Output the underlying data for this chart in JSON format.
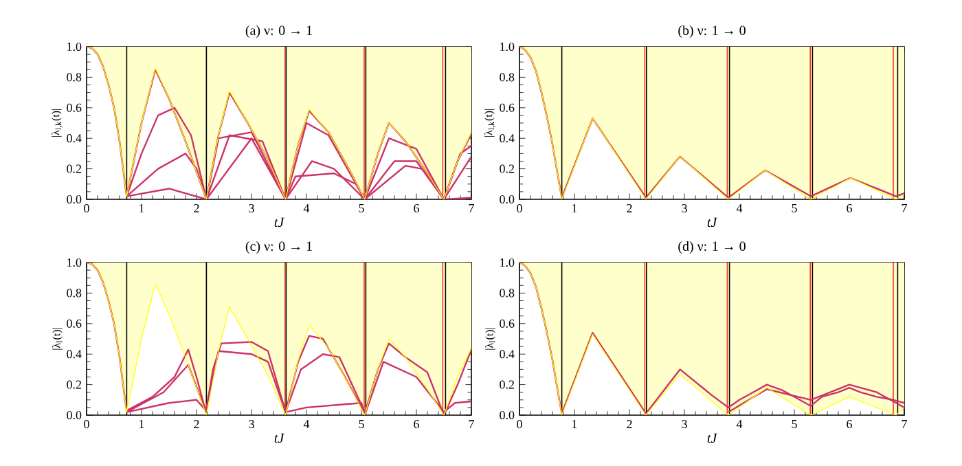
{
  "chart_data": [
    {
      "type": "line",
      "title": "(a) ν: 0 → 1",
      "xlabel": "tJ",
      "ylabel": "|λ$_{l,k}$(t)|",
      "xlim": [
        0,
        7
      ],
      "ylim": [
        0,
        1
      ],
      "xticks": [
        0,
        1,
        2,
        3,
        4,
        5,
        6,
        7
      ],
      "yticks": [
        {
          "value": 0,
          "label": "0.0"
        },
        {
          "value": 0.2,
          "label": "0.2"
        },
        {
          "value": 0.4,
          "label": "0.4"
        },
        {
          "value": 0.6,
          "label": "0.6"
        },
        {
          "value": 0.8,
          "label": "0.8"
        },
        {
          "value": 1,
          "label": "1.0"
        }
      ],
      "marker": "none",
      "line_style": "solid",
      "series": [
        {
          "color": "#ffff00",
          "x": [
            0,
            0.1,
            0.2,
            0.3,
            0.4,
            0.5,
            0.6,
            0.7,
            0.73,
            1.0,
            1.25,
            1.5,
            1.8,
            2.18,
            2.4,
            2.6,
            2.9,
            3.3,
            3.62,
            3.85,
            4.05,
            4.4,
            4.8,
            5.06,
            5.3,
            5.5,
            5.8,
            6.2,
            6.5,
            6.75,
            7.0
          ],
          "values": [
            1,
            0.99,
            0.95,
            0.87,
            0.75,
            0.6,
            0.38,
            0.1,
            0.02,
            0.5,
            0.86,
            0.66,
            0.38,
            0,
            0.42,
            0.71,
            0.52,
            0.26,
            0,
            0.36,
            0.59,
            0.44,
            0.18,
            0,
            0.3,
            0.5,
            0.38,
            0.17,
            0,
            0.25,
            0.44
          ],
          "lower": [
            1,
            0.99,
            0.95,
            0.87,
            0.75,
            0.6,
            0.38,
            0.1,
            0.02,
            0.5,
            0.86,
            0.66,
            0.38,
            0,
            0.42,
            0.71,
            0.52,
            0.26,
            0,
            0.36,
            0.59,
            0.44,
            0.18,
            0,
            0.3,
            0.5,
            0.38,
            0.17,
            0,
            0.25,
            0.44
          ],
          "upper": [
            1,
            1,
            1,
            1,
            1,
            1,
            1,
            1,
            1,
            1,
            1,
            1,
            1,
            1,
            1,
            1,
            1,
            1,
            1,
            1,
            1,
            1,
            1,
            1,
            1,
            1,
            1,
            1,
            1,
            1,
            1
          ]
        },
        {
          "color": "#cc3366",
          "x": [
            0,
            0.1,
            0.2,
            0.3,
            0.4,
            0.5,
            0.6,
            0.7,
            0.73,
            1.0,
            1.25,
            1.5,
            1.8,
            2.18,
            2.4,
            2.6,
            2.9,
            3.3,
            3.62,
            3.85,
            4.05,
            4.4,
            4.8,
            5.06,
            5.3,
            5.5,
            5.8,
            6.2,
            6.5,
            6.75,
            7.0
          ],
          "values": [
            1,
            0.99,
            0.95,
            0.87,
            0.75,
            0.6,
            0.38,
            0.1,
            0.02,
            0.5,
            0.85,
            0.66,
            0.38,
            0,
            0.42,
            0.7,
            0.52,
            0.26,
            0,
            0.36,
            0.58,
            0.44,
            0.18,
            0,
            0.3,
            0.5,
            0.38,
            0.17,
            0,
            0.25,
            0.43
          ]
        },
        {
          "color": "#cc3366",
          "x": [
            0.73,
            1.0,
            1.3,
            1.6,
            1.9,
            2.18,
            2.4,
            3.0,
            3.62,
            4.0,
            4.4,
            5.06,
            5.5,
            6.0,
            6.5,
            6.8,
            7.0
          ],
          "values": [
            0.02,
            0.3,
            0.55,
            0.6,
            0.42,
            0,
            0.4,
            0.44,
            0,
            0.5,
            0.42,
            0,
            0.4,
            0.33,
            0,
            0.3,
            0.35
          ]
        },
        {
          "color": "#cc3366",
          "x": [
            0.73,
            1.3,
            1.8,
            2.0,
            2.18,
            2.6,
            3.2,
            3.62,
            4.1,
            4.5,
            5.06,
            5.6,
            6.0,
            6.5,
            7.0
          ],
          "values": [
            0.02,
            0.2,
            0.3,
            0.2,
            0,
            0.42,
            0.38,
            0,
            0.25,
            0.2,
            0,
            0.25,
            0.25,
            0,
            0.28
          ]
        },
        {
          "color": "#cc3366",
          "x": [
            0.73,
            1.5,
            2.18,
            3.0,
            3.62,
            3.8,
            4.5,
            4.9,
            5.06,
            5.8,
            6.1,
            6.5,
            7.0
          ],
          "values": [
            0.02,
            0.07,
            0,
            0.4,
            0,
            0.15,
            0.17,
            0.1,
            0,
            0.22,
            0.2,
            0,
            0.01
          ]
        }
      ],
      "ref_lines": [
        {
          "axis": "x",
          "value": 0.73,
          "color": "#000000"
        },
        {
          "axis": "x",
          "value": 2.18,
          "color": "#000000"
        },
        {
          "axis": "x",
          "value": 3.61,
          "color": "#ff3020"
        },
        {
          "axis": "x",
          "value": 3.63,
          "color": "#000000"
        },
        {
          "axis": "x",
          "value": 5.05,
          "color": "#ff3020"
        },
        {
          "axis": "x",
          "value": 5.08,
          "color": "#000000"
        },
        {
          "axis": "x",
          "value": 6.48,
          "color": "#ff3020"
        },
        {
          "axis": "x",
          "value": 6.53,
          "color": "#000000"
        }
      ]
    },
    {
      "type": "line",
      "title": "(b) ν: 1 → 0",
      "xlabel": "tJ",
      "ylabel": "|λ$_{l,k}$(t)|",
      "xlim": [
        0,
        7
      ],
      "ylim": [
        0,
        1
      ],
      "xticks": [
        0,
        1,
        2,
        3,
        4,
        5,
        6,
        7
      ],
      "yticks": [
        {
          "value": 0,
          "label": "0.0"
        },
        {
          "value": 0.2,
          "label": "0.2"
        },
        {
          "value": 0.4,
          "label": "0.4"
        },
        {
          "value": 0.6,
          "label": "0.6"
        },
        {
          "value": 0.8,
          "label": "0.8"
        },
        {
          "value": 1,
          "label": "1.0"
        }
      ],
      "marker": "none",
      "line_style": "solid",
      "series": [
        {
          "color": "#ffff00",
          "x": [
            0,
            0.1,
            0.2,
            0.3,
            0.4,
            0.5,
            0.6,
            0.7,
            0.77,
            1.33,
            2.3,
            2.92,
            3.8,
            4.47,
            5.3,
            6.02,
            6.85,
            7.0
          ],
          "values": [
            1,
            0.98,
            0.93,
            0.84,
            0.7,
            0.54,
            0.36,
            0.15,
            0,
            0.53,
            0,
            0.28,
            0,
            0.19,
            0,
            0.14,
            0,
            0.03
          ],
          "lower": [
            1,
            0.98,
            0.93,
            0.84,
            0.7,
            0.54,
            0.36,
            0.15,
            0,
            0.53,
            0,
            0.28,
            0,
            0.19,
            0,
            0.14,
            0,
            0.03
          ],
          "upper": [
            1,
            1,
            1,
            1,
            1,
            1,
            1,
            1,
            1,
            1,
            1,
            1,
            1,
            1,
            1,
            1,
            1,
            1
          ]
        },
        {
          "color": "#cc3366",
          "x": [
            0,
            0.1,
            0.2,
            0.3,
            0.4,
            0.5,
            0.6,
            0.7,
            0.77,
            1.33,
            2.3,
            2.92,
            3.8,
            4.47,
            5.3,
            6.02,
            6.85,
            7.0
          ],
          "values": [
            1,
            0.98,
            0.93,
            0.84,
            0.7,
            0.54,
            0.36,
            0.15,
            0.01,
            0.53,
            0.01,
            0.28,
            0.01,
            0.19,
            0.02,
            0.14,
            0.02,
            0.04
          ]
        }
      ],
      "ref_lines": [
        {
          "axis": "x",
          "value": 0.77,
          "color": "#000000"
        },
        {
          "axis": "x",
          "value": 2.28,
          "color": "#ff3020"
        },
        {
          "axis": "x",
          "value": 2.31,
          "color": "#000000"
        },
        {
          "axis": "x",
          "value": 3.78,
          "color": "#ff3020"
        },
        {
          "axis": "x",
          "value": 3.82,
          "color": "#000000"
        },
        {
          "axis": "x",
          "value": 5.29,
          "color": "#ff3020"
        },
        {
          "axis": "x",
          "value": 5.33,
          "color": "#000000"
        },
        {
          "axis": "x",
          "value": 6.8,
          "color": "#ff3020"
        },
        {
          "axis": "x",
          "value": 6.88,
          "color": "#000000"
        }
      ]
    },
    {
      "type": "line",
      "title": "(c) ν: 0 → 1",
      "xlabel": "tJ",
      "ylabel": "|λ$_{l}$(t)|",
      "xlim": [
        0,
        7
      ],
      "ylim": [
        0,
        1
      ],
      "xticks": [
        0,
        1,
        2,
        3,
        4,
        5,
        6,
        7
      ],
      "yticks": [
        {
          "value": 0,
          "label": "0.0"
        },
        {
          "value": 0.2,
          "label": "0.2"
        },
        {
          "value": 0.4,
          "label": "0.4"
        },
        {
          "value": 0.6,
          "label": "0.6"
        },
        {
          "value": 0.8,
          "label": "0.8"
        },
        {
          "value": 1,
          "label": "1.0"
        }
      ],
      "marker": "none",
      "line_style": "solid",
      "series": [
        {
          "color": "#ffff00",
          "x": [
            0,
            0.1,
            0.2,
            0.3,
            0.4,
            0.5,
            0.6,
            0.7,
            0.73,
            1.0,
            1.25,
            1.5,
            1.8,
            2.18,
            2.4,
            2.6,
            2.9,
            3.3,
            3.62,
            3.85,
            4.05,
            4.4,
            4.8,
            5.06,
            5.3,
            5.5,
            5.8,
            6.2,
            6.5,
            6.75,
            7.0
          ],
          "values": [
            1,
            0.99,
            0.95,
            0.87,
            0.75,
            0.6,
            0.38,
            0.1,
            0.02,
            0.5,
            0.86,
            0.66,
            0.38,
            0,
            0.42,
            0.71,
            0.52,
            0.26,
            0,
            0.36,
            0.59,
            0.44,
            0.18,
            0,
            0.3,
            0.5,
            0.38,
            0.17,
            0,
            0.25,
            0.44
          ],
          "lower": [
            1,
            0.99,
            0.95,
            0.87,
            0.75,
            0.6,
            0.38,
            0.1,
            0.02,
            0.5,
            0.86,
            0.66,
            0.38,
            0,
            0.42,
            0.71,
            0.52,
            0.26,
            0,
            0.36,
            0.59,
            0.44,
            0.18,
            0,
            0.3,
            0.5,
            0.38,
            0.17,
            0,
            0.25,
            0.44
          ],
          "upper": [
            1,
            1,
            1,
            1,
            1,
            1,
            1,
            1,
            1,
            1,
            1,
            1,
            1,
            1,
            1,
            1,
            1,
            1,
            1,
            1,
            1,
            1,
            1,
            1,
            1,
            1,
            1,
            1,
            1,
            1,
            1
          ]
        },
        {
          "color": "#cc3366",
          "x": [
            0,
            0.1,
            0.2,
            0.3,
            0.4,
            0.5,
            0.6,
            0.7,
            0.73,
            1.2,
            1.6,
            1.85,
            2.0,
            2.17,
            2.3,
            2.45,
            3.0,
            3.3,
            3.62,
            3.85,
            4.05,
            4.3,
            4.7,
            5.06,
            5.3,
            5.5,
            5.8,
            6.2,
            6.5,
            6.75,
            7.0
          ],
          "values": [
            1,
            0.99,
            0.95,
            0.87,
            0.75,
            0.6,
            0.38,
            0.1,
            0.03,
            0.12,
            0.25,
            0.43,
            0.25,
            0.02,
            0.3,
            0.47,
            0.48,
            0.42,
            0.02,
            0.35,
            0.52,
            0.5,
            0.25,
            0.01,
            0.3,
            0.47,
            0.38,
            0.28,
            0,
            0.2,
            0.43
          ]
        },
        {
          "color": "#cc3366",
          "x": [
            0.73,
            1.5,
            2.0,
            2.17,
            2.4,
            3.0,
            3.3,
            3.62,
            4.0,
            5.0,
            5.06,
            5.4,
            6.0,
            6.5,
            6.7,
            7.0
          ],
          "values": [
            0.02,
            0.08,
            0.1,
            0.03,
            0.42,
            0.4,
            0.35,
            0.02,
            0.05,
            0.08,
            0,
            0.35,
            0.25,
            0.02,
            0.08,
            0.09
          ]
        },
        {
          "color": "#cc3366",
          "x": [
            0.73,
            1.4,
            1.85,
            2.17
          ],
          "values": [
            0.02,
            0.15,
            0.33,
            0.02
          ]
        },
        {
          "color": "#cc3366",
          "x": [
            3.62,
            3.9,
            4.3,
            4.6,
            5.06
          ],
          "values": [
            0.02,
            0.3,
            0.4,
            0.38,
            0.02
          ]
        }
      ],
      "ref_lines": [
        {
          "axis": "x",
          "value": 0.73,
          "color": "#000000"
        },
        {
          "axis": "x",
          "value": 2.18,
          "color": "#000000"
        },
        {
          "axis": "x",
          "value": 3.61,
          "color": "#ff3020"
        },
        {
          "axis": "x",
          "value": 3.63,
          "color": "#000000"
        },
        {
          "axis": "x",
          "value": 5.05,
          "color": "#ff3020"
        },
        {
          "axis": "x",
          "value": 5.08,
          "color": "#000000"
        },
        {
          "axis": "x",
          "value": 6.48,
          "color": "#ff3020"
        },
        {
          "axis": "x",
          "value": 6.53,
          "color": "#000000"
        }
      ]
    },
    {
      "type": "line",
      "title": "(d) ν: 1 → 0",
      "xlabel": "tJ",
      "ylabel": "|λ$_{l}$(t)|",
      "xlim": [
        0,
        7
      ],
      "ylim": [
        0,
        1
      ],
      "xticks": [
        0,
        1,
        2,
        3,
        4,
        5,
        6,
        7
      ],
      "yticks": [
        {
          "value": 0,
          "label": "0.0"
        },
        {
          "value": 0.2,
          "label": "0.2"
        },
        {
          "value": 0.4,
          "label": "0.4"
        },
        {
          "value": 0.6,
          "label": "0.6"
        },
        {
          "value": 0.8,
          "label": "0.8"
        },
        {
          "value": 1,
          "label": "1.0"
        }
      ],
      "marker": "none",
      "line_style": "solid",
      "series": [
        {
          "color": "#ffff00",
          "x": [
            0,
            0.1,
            0.2,
            0.3,
            0.4,
            0.5,
            0.6,
            0.7,
            0.77,
            1.33,
            2.3,
            2.92,
            3.8,
            4.5,
            5.3,
            6.0,
            6.85,
            7.0
          ],
          "values": [
            1,
            0.98,
            0.93,
            0.84,
            0.7,
            0.54,
            0.36,
            0.15,
            0,
            0.53,
            0,
            0.27,
            0,
            0.18,
            0,
            0.12,
            0,
            0.05
          ],
          "lower": [
            1,
            0.98,
            0.93,
            0.84,
            0.7,
            0.54,
            0.36,
            0.15,
            0,
            0.53,
            0,
            0.27,
            0,
            0.18,
            0,
            0.12,
            0,
            0.05
          ],
          "upper": [
            1,
            1,
            1,
            1,
            1,
            1,
            1,
            1,
            1,
            1,
            1,
            1,
            1,
            1,
            1,
            1,
            1,
            1
          ]
        },
        {
          "color": "#cc3366",
          "x": [
            0,
            0.1,
            0.2,
            0.3,
            0.4,
            0.5,
            0.6,
            0.7,
            0.77,
            1.33,
            2.3,
            2.92,
            3.5,
            3.8,
            4.0,
            4.2,
            4.5,
            4.8,
            5.1,
            5.3,
            5.5,
            5.8,
            6.0,
            6.2,
            6.5,
            6.8,
            7.0
          ],
          "values": [
            1,
            0.98,
            0.93,
            0.84,
            0.7,
            0.54,
            0.36,
            0.15,
            0.01,
            0.54,
            0.01,
            0.3,
            0.13,
            0.05,
            0.1,
            0.14,
            0.2,
            0.16,
            0.1,
            0.06,
            0.12,
            0.15,
            0.18,
            0.15,
            0.12,
            0.1,
            0.08
          ]
        },
        {
          "color": "#cc3366",
          "x": [
            3.8,
            4.5,
            5.3,
            6.0,
            6.5,
            7.0
          ],
          "values": [
            0.02,
            0.17,
            0.1,
            0.2,
            0.15,
            0.05
          ]
        }
      ],
      "ref_lines": [
        {
          "axis": "x",
          "value": 0.77,
          "color": "#000000"
        },
        {
          "axis": "x",
          "value": 2.28,
          "color": "#ff3020"
        },
        {
          "axis": "x",
          "value": 2.31,
          "color": "#000000"
        },
        {
          "axis": "x",
          "value": 3.78,
          "color": "#ff3020"
        },
        {
          "axis": "x",
          "value": 3.82,
          "color": "#000000"
        },
        {
          "axis": "x",
          "value": 5.29,
          "color": "#ff3020"
        },
        {
          "axis": "x",
          "value": 5.33,
          "color": "#000000"
        },
        {
          "axis": "x",
          "value": 6.8,
          "color": "#ff3020"
        },
        {
          "axis": "x",
          "value": 6.88,
          "color": "#000000"
        }
      ]
    }
  ]
}
